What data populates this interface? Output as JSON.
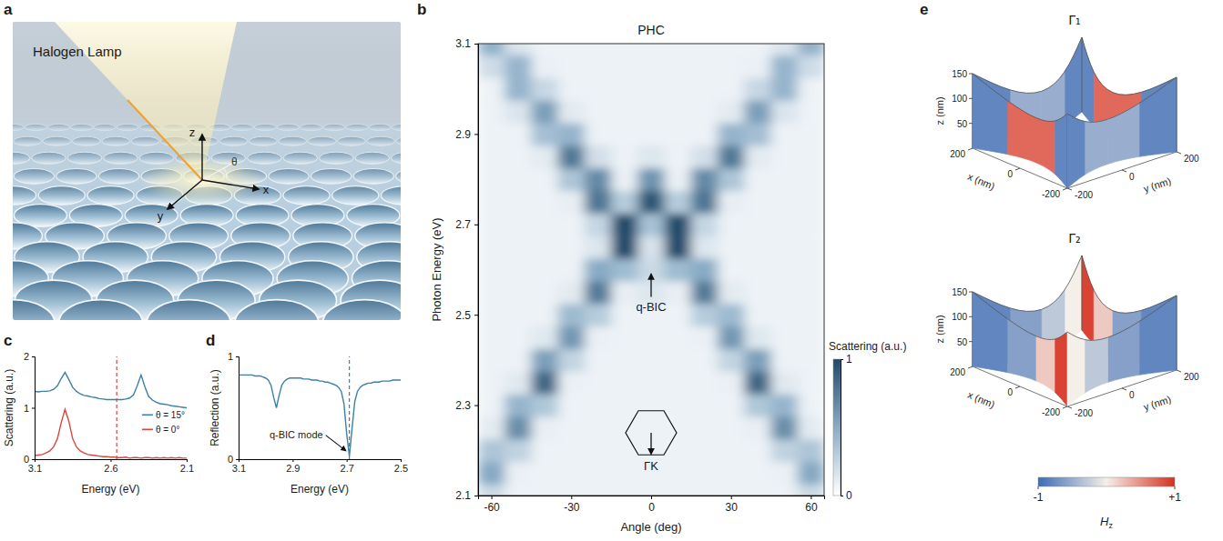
{
  "illustration": {
    "panel": "a",
    "label": "Halogen Lamp",
    "axis_labels": {
      "x": "x",
      "y": "y",
      "z": "z"
    },
    "angle_label": "θ"
  },
  "chart_data": [
    {
      "panel": "b",
      "type": "heatmap",
      "title": "PHC",
      "x_label": "Angle (deg)",
      "y_label": "Photon Energy (eV)",
      "x": [
        -60,
        -50,
        -40,
        -30,
        -20,
        -10,
        0,
        10,
        20,
        30,
        40,
        50,
        60
      ],
      "y": [
        2.1,
        2.15,
        2.2,
        2.25,
        2.3,
        2.35,
        2.4,
        2.45,
        2.5,
        2.55,
        2.6,
        2.65,
        2.7,
        2.75,
        2.8,
        2.85,
        2.9,
        2.95,
        3,
        3.05,
        3.1
      ],
      "z": [
        [
          0.22,
          0.08,
          0.08,
          0.08,
          0.08,
          0.08,
          0.08,
          0.08,
          0.08,
          0.08,
          0.08,
          0.08,
          0.22
        ],
        [
          0.52,
          0.09,
          0.08,
          0.08,
          0.08,
          0.08,
          0.08,
          0.08,
          0.08,
          0.08,
          0.08,
          0.09,
          0.52
        ],
        [
          0.35,
          0.27,
          0.08,
          0.08,
          0.08,
          0.08,
          0.08,
          0.08,
          0.08,
          0.08,
          0.08,
          0.27,
          0.35
        ],
        [
          0.12,
          0.66,
          0.1,
          0.08,
          0.08,
          0.08,
          0.08,
          0.08,
          0.08,
          0.08,
          0.1,
          0.66,
          0.12
        ],
        [
          0.08,
          0.45,
          0.34,
          0.08,
          0.08,
          0.08,
          0.08,
          0.08,
          0.08,
          0.08,
          0.34,
          0.45,
          0.08
        ],
        [
          0.08,
          0.13,
          0.86,
          0.09,
          0.08,
          0.08,
          0.08,
          0.08,
          0.08,
          0.09,
          0.86,
          0.13,
          0.08
        ],
        [
          0.08,
          0.08,
          0.57,
          0.26,
          0.08,
          0.08,
          0.08,
          0.08,
          0.08,
          0.26,
          0.57,
          0.08,
          0.08
        ],
        [
          0.08,
          0.08,
          0.14,
          0.61,
          0.09,
          0.08,
          0.08,
          0.08,
          0.09,
          0.61,
          0.14,
          0.08,
          0.08
        ],
        [
          0.08,
          0.08,
          0.08,
          0.42,
          0.31,
          0.08,
          0.08,
          0.08,
          0.31,
          0.42,
          0.08,
          0.08,
          0.08
        ],
        [
          0.08,
          0.08,
          0.08,
          0.12,
          0.76,
          0.1,
          0.15,
          0.1,
          0.76,
          0.12,
          0.08,
          0.08,
          0.08
        ],
        [
          0.08,
          0.08,
          0.08,
          0.08,
          0.51,
          0.41,
          0.23,
          0.41,
          0.51,
          0.08,
          0.08,
          0.08,
          0.08
        ],
        [
          0.08,
          0.08,
          0.08,
          0.08,
          0.15,
          1,
          0.17,
          1,
          0.15,
          0.08,
          0.08,
          0.08,
          0.08
        ],
        [
          0.08,
          0.08,
          0.08,
          0.08,
          0.25,
          1,
          0.37,
          1,
          0.25,
          0.08,
          0.08,
          0.08,
          0.08
        ],
        [
          0.08,
          0.08,
          0.08,
          0.1,
          0.78,
          0.31,
          0.95,
          0.31,
          0.78,
          0.1,
          0.08,
          0.08,
          0.08
        ],
        [
          0.08,
          0.08,
          0.08,
          0.35,
          0.68,
          0.09,
          0.63,
          0.09,
          0.68,
          0.35,
          0.08,
          0.08,
          0.08
        ],
        [
          0.08,
          0.08,
          0.12,
          0.77,
          0.19,
          0.08,
          0.15,
          0.08,
          0.19,
          0.77,
          0.12,
          0.08,
          0.08
        ],
        [
          0.08,
          0.08,
          0.39,
          0.45,
          0.08,
          0.08,
          0.08,
          0.08,
          0.08,
          0.45,
          0.39,
          0.08,
          0.08
        ],
        [
          0.08,
          0.16,
          0.57,
          0.12,
          0.08,
          0.08,
          0.08,
          0.08,
          0.08,
          0.12,
          0.57,
          0.16,
          0.08
        ],
        [
          0.08,
          0.45,
          0.24,
          0.08,
          0.08,
          0.08,
          0.08,
          0.08,
          0.08,
          0.08,
          0.24,
          0.45,
          0.08
        ],
        [
          0.21,
          0.45,
          0.09,
          0.08,
          0.08,
          0.08,
          0.08,
          0.08,
          0.08,
          0.08,
          0.09,
          0.45,
          0.21
        ],
        [
          0.47,
          0.16,
          0.08,
          0.08,
          0.08,
          0.08,
          0.08,
          0.08,
          0.08,
          0.08,
          0.08,
          0.16,
          0.47
        ]
      ],
      "xlim": [
        -65,
        65
      ],
      "ylim": [
        2.1,
        3.1
      ],
      "xticks": [
        -60,
        -30,
        0,
        30,
        60
      ],
      "yticks": [
        2.1,
        2.3,
        2.5,
        2.7,
        2.9,
        3.1
      ],
      "colorbar": {
        "label": "Scattering (a.u.)",
        "range": [
          0,
          1
        ],
        "ticks": [
          0,
          1
        ]
      },
      "annotations": [
        {
          "text": "q-BIC",
          "x": 0,
          "y": 2.6
        }
      ],
      "inset": {
        "label": "ΓK"
      }
    },
    {
      "panel": "c",
      "type": "line",
      "x_label": "Energy (eV)",
      "y_label": "Scattering (a.u.)",
      "x": [
        3.1,
        3.075,
        3.05,
        3.025,
        3,
        2.975,
        2.95,
        2.925,
        2.9,
        2.875,
        2.85,
        2.825,
        2.8,
        2.775,
        2.75,
        2.725,
        2.7,
        2.675,
        2.65,
        2.625,
        2.6,
        2.575,
        2.55,
        2.525,
        2.5,
        2.475,
        2.45,
        2.425,
        2.4,
        2.375,
        2.35,
        2.325,
        2.3,
        2.275,
        2.25,
        2.225,
        2.2,
        2.175,
        2.15,
        2.125,
        2.1
      ],
      "series": [
        {
          "name": "θ = 15°",
          "color": "#3f7fa6",
          "values": [
            1.32,
            1.31,
            1.32,
            1.32,
            1.33,
            1.36,
            1.43,
            1.57,
            1.69,
            1.55,
            1.4,
            1.32,
            1.27,
            1.24,
            1.23,
            1.21,
            1.2,
            1.18,
            1.17,
            1.16,
            1.16,
            1.16,
            1.16,
            1.16,
            1.17,
            1.19,
            1.25,
            1.43,
            1.64,
            1.41,
            1.22,
            1.15,
            1.11,
            1.08,
            1.07,
            1.06,
            1.04,
            1.03,
            1.02,
            1.01,
            1
          ]
        },
        {
          "name": "θ = 0°",
          "color": "#d9473f",
          "values": [
            0.07,
            0.08,
            0.09,
            0.12,
            0.16,
            0.24,
            0.4,
            0.71,
            0.97,
            0.74,
            0.4,
            0.24,
            0.16,
            0.12,
            0.09,
            0.08,
            0.07,
            0.06,
            0.05,
            0.05,
            0.04,
            0.04,
            0.03,
            0.03,
            0.04,
            0.02,
            0.03,
            0.03,
            0.02,
            0.03,
            0.03,
            0.02,
            0.03,
            0.02,
            0.03,
            0.02,
            0.03,
            0.02,
            0.03,
            0.02,
            0.02
          ]
        }
      ],
      "xlim": [
        3.1,
        2.1
      ],
      "ylim": [
        0,
        2
      ],
      "xticks": [
        3.1,
        2.6,
        2.1
      ],
      "yticks": [
        0,
        1,
        2
      ],
      "legend": "right",
      "reference_lines": [
        {
          "x": 2.56,
          "color": "#d9473f",
          "line_style": "dashed"
        }
      ]
    },
    {
      "panel": "d",
      "type": "line",
      "x_label": "Energy (eV)",
      "y_label": "Reflection (a.u.)",
      "x": [
        3.1,
        3.09,
        3.08,
        3.07,
        3.06,
        3.05,
        3.04,
        3.03,
        3.02,
        3.01,
        3,
        2.99,
        2.98,
        2.97,
        2.96,
        2.95,
        2.94,
        2.93,
        2.92,
        2.91,
        2.9,
        2.89,
        2.88,
        2.87,
        2.86,
        2.85,
        2.84,
        2.83,
        2.82,
        2.81,
        2.8,
        2.79,
        2.78,
        2.77,
        2.76,
        2.75,
        2.74,
        2.73,
        2.72,
        2.71,
        2.7,
        2.69,
        2.68,
        2.67,
        2.66,
        2.65,
        2.64,
        2.63,
        2.62,
        2.61,
        2.6,
        2.59,
        2.58,
        2.57,
        2.56,
        2.55,
        2.54,
        2.53,
        2.52,
        2.51,
        2.5
      ],
      "series": [
        {
          "color": "#3f7fa6",
          "values": [
            0.82,
            0.82,
            0.82,
            0.82,
            0.82,
            0.82,
            0.81,
            0.81,
            0.81,
            0.8,
            0.79,
            0.77,
            0.72,
            0.6,
            0.5,
            0.62,
            0.72,
            0.76,
            0.78,
            0.79,
            0.79,
            0.79,
            0.79,
            0.79,
            0.78,
            0.78,
            0.78,
            0.77,
            0.77,
            0.77,
            0.76,
            0.76,
            0.75,
            0.75,
            0.74,
            0.73,
            0.72,
            0.7,
            0.66,
            0.54,
            0.25,
            0.03,
            0.3,
            0.56,
            0.66,
            0.7,
            0.72,
            0.73,
            0.74,
            0.74,
            0.75,
            0.75,
            0.75,
            0.76,
            0.76,
            0.76,
            0.76,
            0.77,
            0.77,
            0.77,
            0.77
          ]
        }
      ],
      "xlim": [
        3.1,
        2.5
      ],
      "ylim": [
        0,
        1
      ],
      "xticks": [
        3.1,
        2.9,
        2.7,
        2.5
      ],
      "yticks": [
        0,
        1
      ],
      "reference_lines": [
        {
          "x": 2.69,
          "color": "#3f7fa6",
          "line_style": "dashed"
        }
      ],
      "annotations": [
        {
          "text": "q-BIC mode",
          "x": 2.69,
          "y": 0.03
        }
      ]
    },
    {
      "panel": "e",
      "type": "surface3d",
      "title": "Γ₁",
      "x_label": "x (nm)",
      "y_label": "y (nm)",
      "z_label": "z (nm)",
      "xlim": [
        -200,
        200
      ],
      "ylim": [
        -200,
        200
      ],
      "zlim": [
        0,
        150
      ],
      "xticks": [
        -200,
        0,
        200
      ],
      "yticks": [
        -200,
        0,
        200
      ],
      "zticks": [
        50,
        100,
        150
      ],
      "field": [
        -0.8,
        0.7,
        0.7,
        -0.8,
        -0.8,
        -0.5,
        -0.5,
        -0.8,
        -0.8,
        0.7,
        0.7,
        -0.8,
        -0.8,
        -0.5,
        -0.5,
        -0.8
      ]
    },
    {
      "type": "surface3d",
      "title": "Γ₂",
      "x_label": "x (nm)",
      "y_label": "y (nm)",
      "z_label": "z (nm)",
      "xlim": [
        -200,
        200
      ],
      "ylim": [
        -200,
        200
      ],
      "zlim": [
        0,
        150
      ],
      "xticks": [
        -200,
        0,
        200
      ],
      "yticks": [
        -200,
        0,
        200
      ],
      "zticks": [
        50,
        100,
        150
      ],
      "field": [
        0.9,
        0.2,
        -0.6,
        -0.8,
        -0.8,
        -0.6,
        -0.3,
        0,
        0.9,
        0.2,
        -0.6,
        -0.8,
        -0.8,
        -0.6,
        -0.3,
        0
      ],
      "colorbar": {
        "label": "Hz",
        "range": [
          -1,
          1
        ],
        "ticks": [
          -1,
          {
            "value": 1,
            "label": "+1"
          }
        ]
      }
    }
  ]
}
